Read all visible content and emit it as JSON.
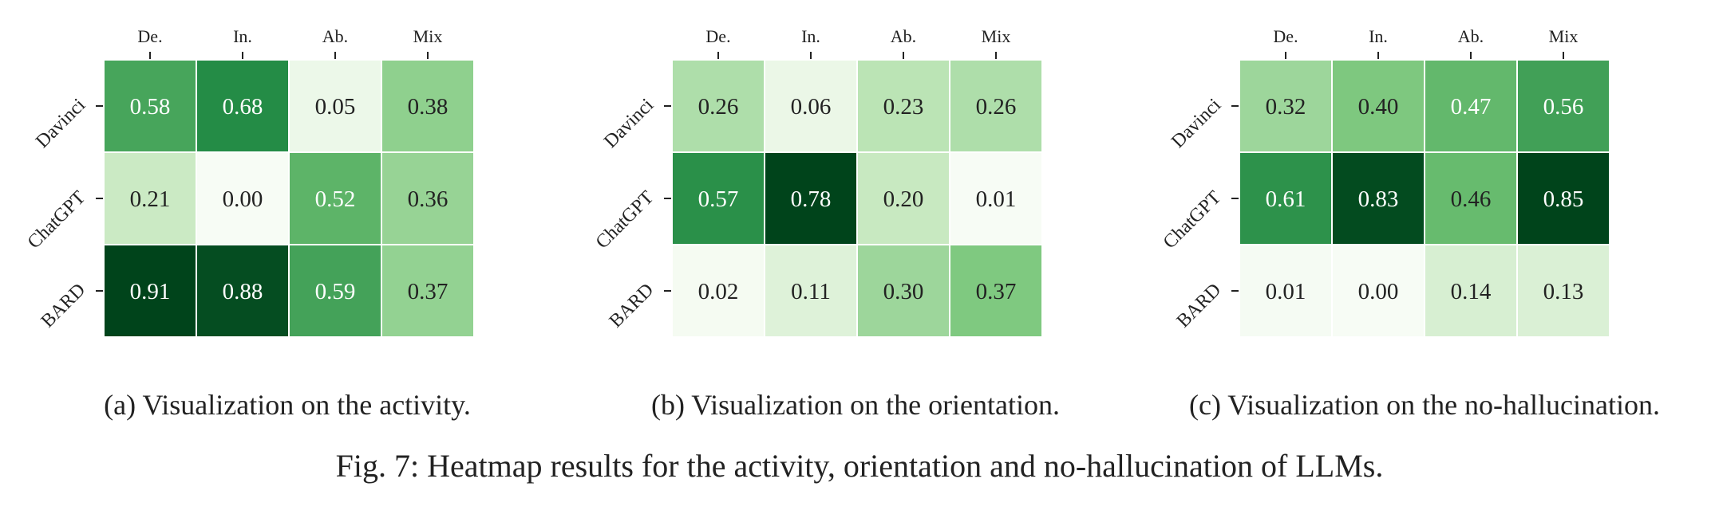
{
  "figure_caption": "Fig. 7: Heatmap results for the activity, orientation and no-hallucination of LLMs.",
  "colors": {
    "cmap_low": "#f7fcf5",
    "cmap_mid1": "#c7e9c0",
    "cmap_mid2": "#74c476",
    "cmap_mid3": "#238b45",
    "cmap_high": "#00441b",
    "text_dark": "#222222",
    "text_light": "#ffffff",
    "cell_border": "#ffffff",
    "axis": "#222222"
  },
  "chart_data": [
    {
      "type": "heatmap",
      "caption": "(a) Visualization on the activity.",
      "columns": [
        "De.",
        "In.",
        "Ab.",
        "Mix"
      ],
      "rows": [
        "Davinci",
        "ChatGPT",
        "BARD"
      ],
      "values": [
        [
          0.58,
          0.68,
          0.05,
          0.38
        ],
        [
          0.21,
          0.0,
          0.52,
          0.36
        ],
        [
          0.91,
          0.88,
          0.59,
          0.37
        ]
      ],
      "value_labels": [
        [
          "0.58",
          "0.68",
          "0.05",
          "0.38"
        ],
        [
          "0.21",
          "0.00",
          "0.52",
          "0.36"
        ],
        [
          "0.91",
          "0.88",
          "0.59",
          "0.37"
        ]
      ],
      "colormap": "Greens",
      "vmin": 0.0,
      "vmax": 0.91
    },
    {
      "type": "heatmap",
      "caption": "(b) Visualization on the orientation.",
      "columns": [
        "De.",
        "In.",
        "Ab.",
        "Mix"
      ],
      "rows": [
        "Davinci",
        "ChatGPT",
        "BARD"
      ],
      "values": [
        [
          0.26,
          0.06,
          0.23,
          0.26
        ],
        [
          0.57,
          0.78,
          0.2,
          0.01
        ],
        [
          0.02,
          0.11,
          0.3,
          0.37
        ]
      ],
      "value_labels": [
        [
          "0.26",
          "0.06",
          "0.23",
          "0.26"
        ],
        [
          "0.57",
          "0.78",
          "0.20",
          "0.01"
        ],
        [
          "0.02",
          "0.11",
          "0.30",
          "0.37"
        ]
      ],
      "colormap": "Greens",
      "vmin": 0.01,
      "vmax": 0.78
    },
    {
      "type": "heatmap",
      "caption": "(c) Visualization on the no-hallucination.",
      "columns": [
        "De.",
        "In.",
        "Ab.",
        "Mix"
      ],
      "rows": [
        "Davinci",
        "ChatGPT",
        "BARD"
      ],
      "values": [
        [
          0.32,
          0.4,
          0.47,
          0.56
        ],
        [
          0.61,
          0.83,
          0.46,
          0.85
        ],
        [
          0.01,
          0.0,
          0.14,
          0.13
        ]
      ],
      "value_labels": [
        [
          "0.32",
          "0.40",
          "0.47",
          "0.56"
        ],
        [
          "0.61",
          "0.83",
          "0.46",
          "0.85"
        ],
        [
          "0.01",
          "0.00",
          "0.14",
          "0.13"
        ]
      ],
      "colormap": "Greens",
      "vmin": 0.0,
      "vmax": 0.85
    }
  ]
}
